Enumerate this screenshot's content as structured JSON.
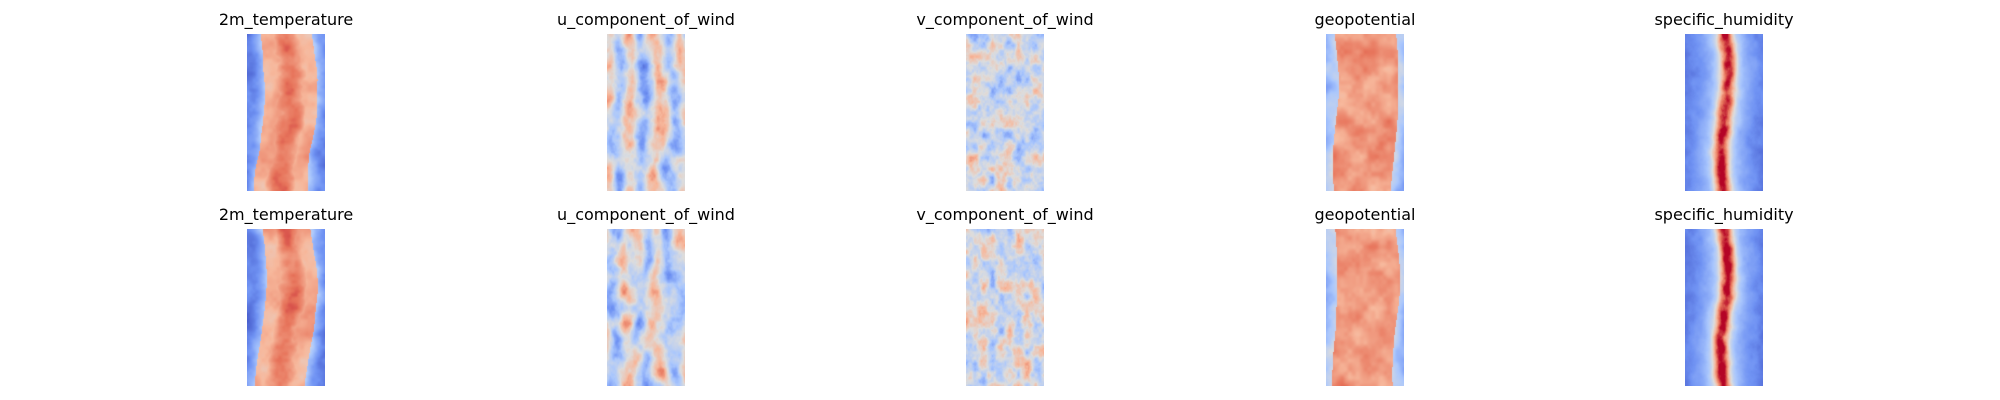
{
  "chart_data": [
    {
      "type": "heatmap",
      "title": "2m_temperature",
      "row": 1,
      "pattern": "temperature",
      "colormap": "coolwarm",
      "axes": "off"
    },
    {
      "type": "heatmap",
      "title": "u_component_of_wind",
      "row": 1,
      "pattern": "u_wind",
      "colormap": "coolwarm",
      "axes": "off"
    },
    {
      "type": "heatmap",
      "title": "v_component_of_wind",
      "row": 1,
      "pattern": "v_wind",
      "colormap": "coolwarm",
      "axes": "off"
    },
    {
      "type": "heatmap",
      "title": "geopotential",
      "row": 1,
      "pattern": "geopotential",
      "colormap": "coolwarm",
      "axes": "off"
    },
    {
      "type": "heatmap",
      "title": "specific_humidity",
      "row": 1,
      "pattern": "humidity",
      "colormap": "coolwarm",
      "axes": "off"
    },
    {
      "type": "heatmap",
      "title": "2m_temperature",
      "row": 2,
      "pattern": "temperature",
      "colormap": "coolwarm",
      "axes": "off"
    },
    {
      "type": "heatmap",
      "title": "u_component_of_wind",
      "row": 2,
      "pattern": "u_wind",
      "colormap": "coolwarm",
      "axes": "off"
    },
    {
      "type": "heatmap",
      "title": "v_component_of_wind",
      "row": 2,
      "pattern": "v_wind",
      "colormap": "coolwarm",
      "axes": "off"
    },
    {
      "type": "heatmap",
      "title": "geopotential",
      "row": 2,
      "pattern": "geopotential",
      "colormap": "coolwarm",
      "axes": "off"
    },
    {
      "type": "heatmap",
      "title": "specific_humidity",
      "row": 2,
      "pattern": "humidity",
      "colormap": "coolwarm",
      "axes": "off"
    }
  ],
  "colormap_stops": [
    "#3b4cc0",
    "#6f92f3",
    "#aac7fd",
    "#dddddd",
    "#f7b89c",
    "#e7745b",
    "#b40426"
  ]
}
